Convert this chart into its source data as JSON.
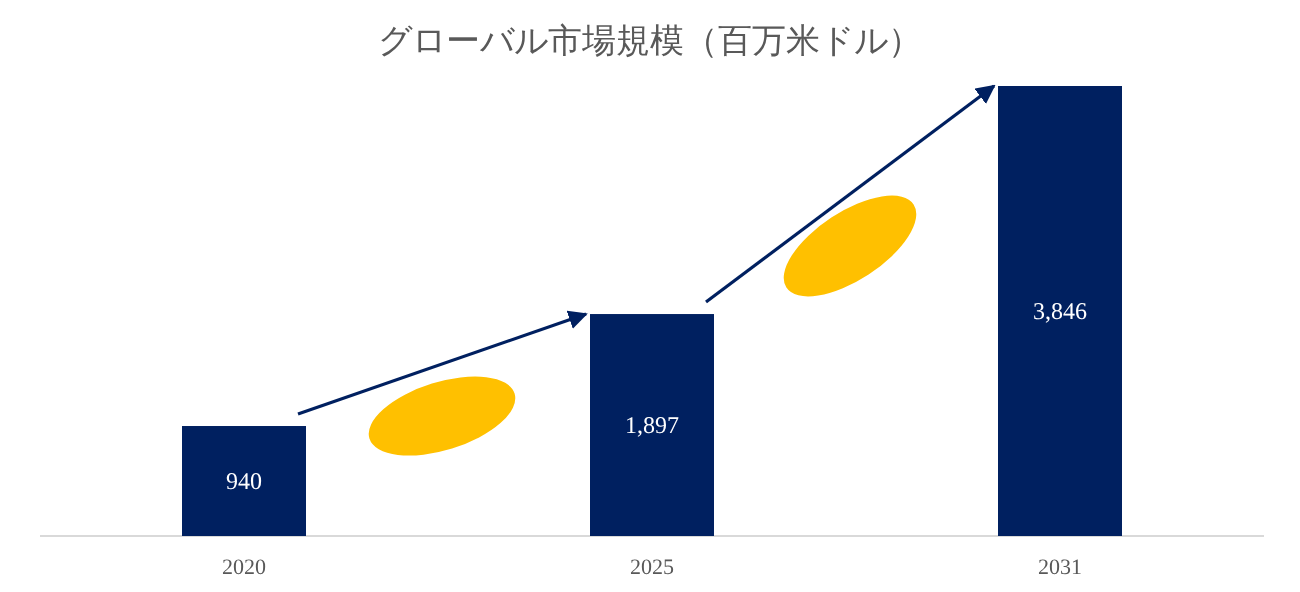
{
  "chart_data": {
    "type": "bar",
    "title": "グローバル市場規模（百万米ドル）",
    "categories": [
      "2020",
      "2025",
      "2031"
    ],
    "values": [
      940,
      1897,
      3846
    ],
    "color": "#002060",
    "value_labels": [
      "940",
      "1,897",
      "3,846"
    ]
  }
}
